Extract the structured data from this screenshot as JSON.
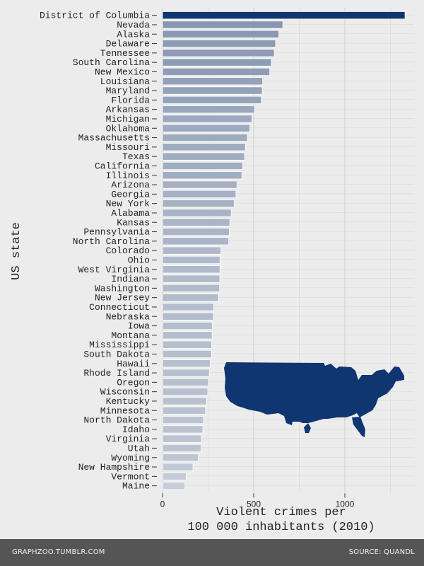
{
  "chart_data": {
    "type": "bar",
    "orientation": "horizontal",
    "ylabel": "US state",
    "xlabel": "Violent crimes per\n100 000 inhabitants (2010)",
    "x_ticks": [
      0,
      500,
      1000
    ],
    "xlim": [
      0,
      1380
    ],
    "grid": true,
    "categories": [
      "District of Columbia",
      "Nevada",
      "Alaska",
      "Delaware",
      "Tennessee",
      "South Carolina",
      "New Mexico",
      "Louisiana",
      "Maryland",
      "Florida",
      "Arkansas",
      "Michigan",
      "Oklahoma",
      "Massachusetts",
      "Missouri",
      "Texas",
      "California",
      "Illinois",
      "Arizona",
      "Georgia",
      "New York",
      "Alabama",
      "Kansas",
      "Pennsylvania",
      "North Carolina",
      "Colorado",
      "Ohio",
      "West Virginia",
      "Indiana",
      "Washington",
      "New Jersey",
      "Connecticut",
      "Nebraska",
      "Iowa",
      "Montana",
      "Mississippi",
      "South Dakota",
      "Hawaii",
      "Rhode Island",
      "Oregon",
      "Wisconsin",
      "Kentucky",
      "Minnesota",
      "North Dakota",
      "Idaho",
      "Virginia",
      "Utah",
      "Wyoming",
      "New Hampshire",
      "Vermont",
      "Maine"
    ],
    "values": [
      1330,
      660,
      638,
      620,
      613,
      597,
      588,
      549,
      547,
      542,
      505,
      490,
      479,
      466,
      455,
      450,
      440,
      435,
      408,
      403,
      393,
      377,
      369,
      366,
      363,
      320,
      315,
      315,
      314,
      313,
      307,
      281,
      279,
      273,
      272,
      270,
      269,
      262,
      257,
      252,
      248,
      242,
      236,
      225,
      221,
      214,
      212,
      196,
      167,
      130,
      123
    ],
    "colors": {
      "top": "#0f3670",
      "bar_dark": "#8797b1",
      "bar_light": "#c6cdd8",
      "grid": "#c4c4c4"
    }
  },
  "footer": {
    "left": "GRAPHZOO.TUMBLR.COM",
    "right": "SOURCE: QUANDL"
  },
  "map_icon": "usa-map-icon"
}
